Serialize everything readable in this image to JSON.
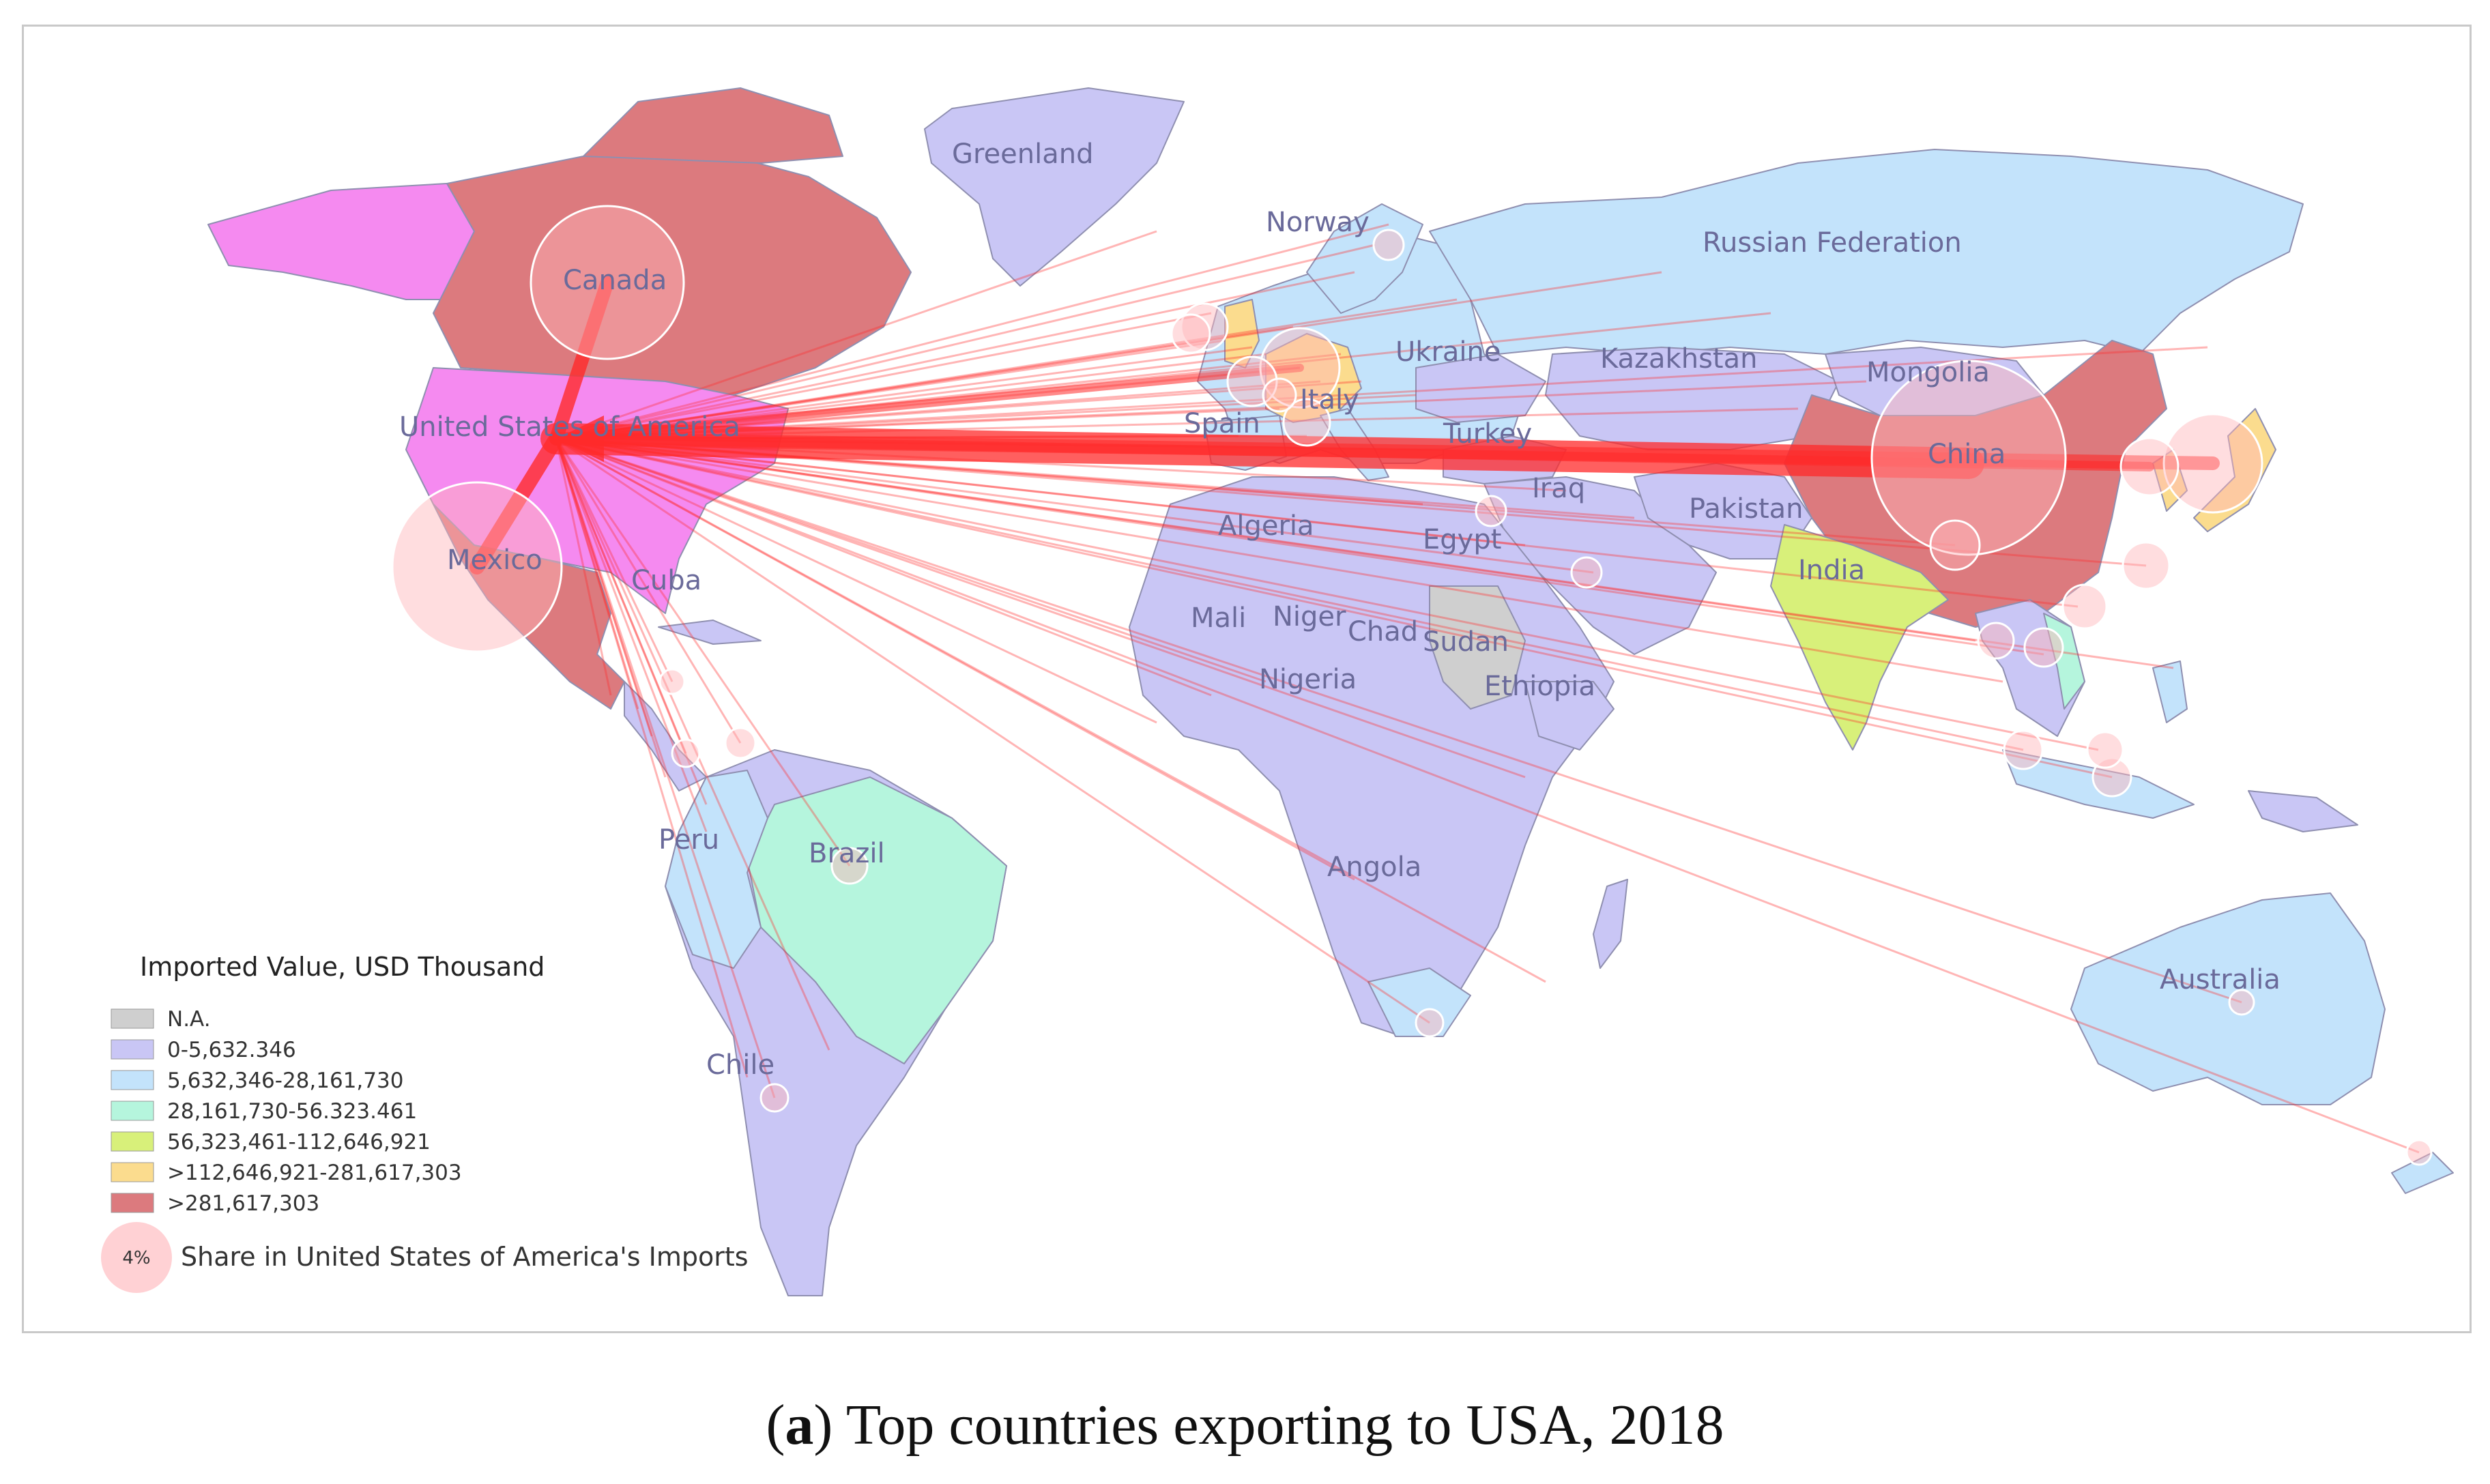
{
  "caption": {
    "panel_letter": "a",
    "text": "Top countries exporting to USA, 2018"
  },
  "legend": {
    "title": "Imported Value, USD Thousand",
    "classes": [
      {
        "label": "N.A.",
        "color": "#cfcfcf"
      },
      {
        "label": "0-5,632.346",
        "color": "#c9c6f5"
      },
      {
        "label": "5,632,346-28,161,730",
        "color": "#c3e3fb"
      },
      {
        "label": "28,161,730-56.323.461",
        "color": "#b5f5dd"
      },
      {
        "label": "56,323,461-112,646,921",
        "color": "#d8f07a"
      },
      {
        "label": ">112,646,921-281,617,303",
        "color": "#fbdc8e"
      },
      {
        "label": ">281,617,303",
        "color": "#dc7a7e"
      }
    ],
    "bubble_label": "4%",
    "bubble_text": "Share in United States of America's Imports"
  },
  "importer": {
    "name": "United States of America",
    "color": "#f58af0"
  },
  "flow_color": "#ff2a2a",
  "countries": [
    {
      "name": "Greenland"
    },
    {
      "name": "Norway"
    },
    {
      "name": "Canada"
    },
    {
      "name": "Russian Federation"
    },
    {
      "name": "Ukraine"
    },
    {
      "name": "Kazakhstan"
    },
    {
      "name": "Mongolia"
    },
    {
      "name": "United States of America"
    },
    {
      "name": "Italy"
    },
    {
      "name": "Spain"
    },
    {
      "name": "Turkey"
    },
    {
      "name": "China"
    },
    {
      "name": "Iraq"
    },
    {
      "name": "Algeria"
    },
    {
      "name": "Egypt"
    },
    {
      "name": "Pakistan"
    },
    {
      "name": "Mexico"
    },
    {
      "name": "Cuba"
    },
    {
      "name": "India"
    },
    {
      "name": "Mali"
    },
    {
      "name": "Niger"
    },
    {
      "name": "Chad"
    },
    {
      "name": "Sudan"
    },
    {
      "name": "Ethiopia"
    },
    {
      "name": "Nigeria"
    },
    {
      "name": "Peru"
    },
    {
      "name": "Brazil"
    },
    {
      "name": "Angola"
    },
    {
      "name": "Australia"
    },
    {
      "name": "Chile"
    }
  ]
}
